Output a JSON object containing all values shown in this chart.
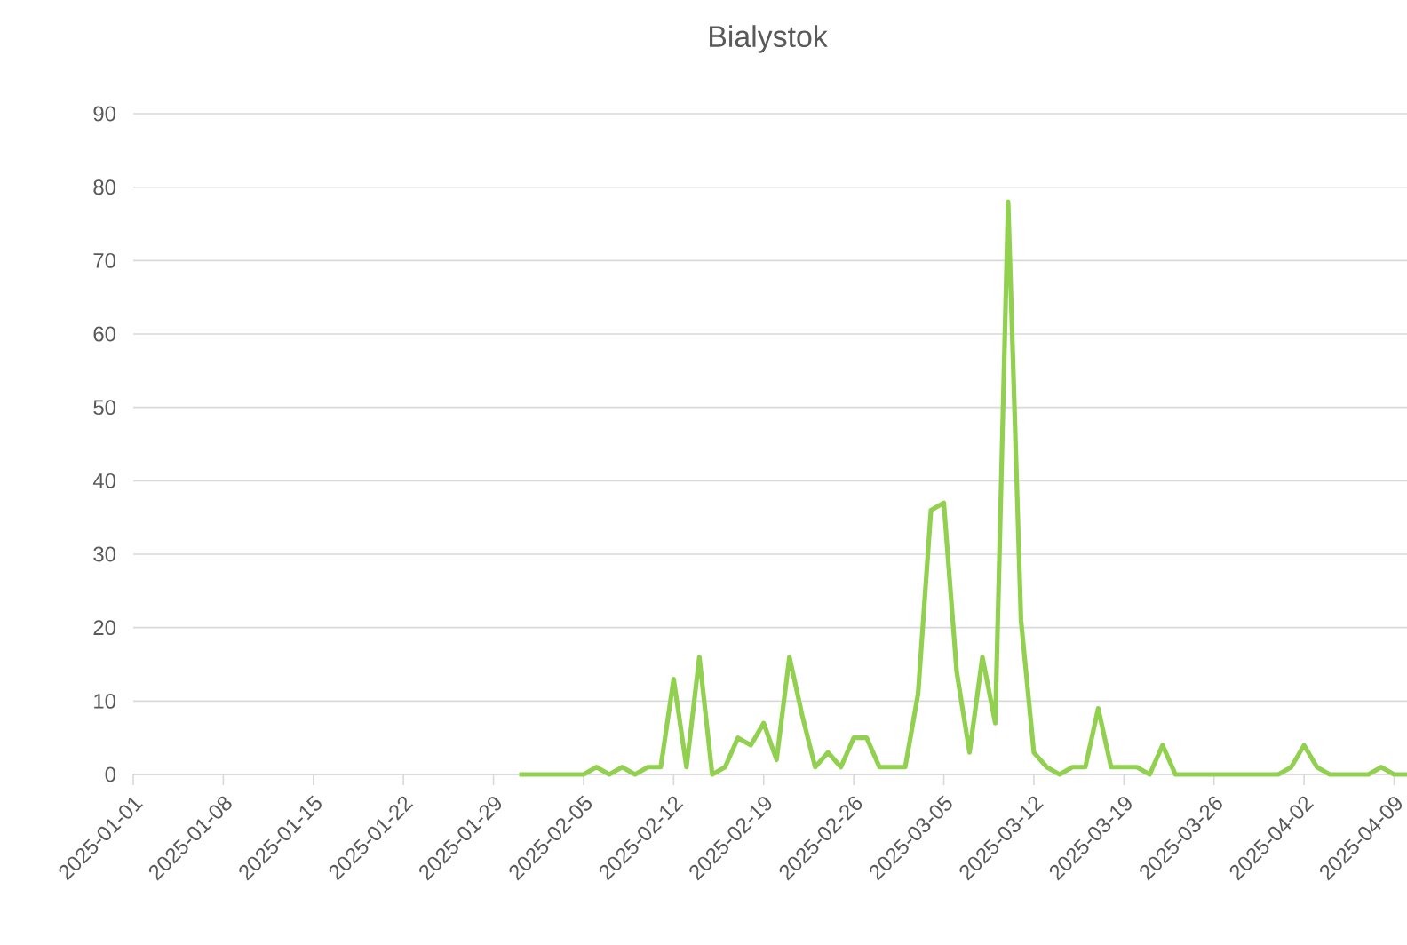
{
  "chart_data": {
    "type": "line",
    "title": "Bialystok",
    "x": [
      "2025-01-31",
      "2025-02-01",
      "2025-02-02",
      "2025-02-03",
      "2025-02-04",
      "2025-02-05",
      "2025-02-06",
      "2025-02-07",
      "2025-02-08",
      "2025-02-09",
      "2025-02-10",
      "2025-02-11",
      "2025-02-12",
      "2025-02-13",
      "2025-02-14",
      "2025-02-15",
      "2025-02-16",
      "2025-02-17",
      "2025-02-18",
      "2025-02-19",
      "2025-02-20",
      "2025-02-21",
      "2025-02-22",
      "2025-02-23",
      "2025-02-24",
      "2025-02-25",
      "2025-02-26",
      "2025-02-27",
      "2025-02-28",
      "2025-03-01",
      "2025-03-02",
      "2025-03-03",
      "2025-03-04",
      "2025-03-05",
      "2025-03-06",
      "2025-03-07",
      "2025-03-08",
      "2025-03-09",
      "2025-03-10",
      "2025-03-11",
      "2025-03-12",
      "2025-03-13",
      "2025-03-14",
      "2025-03-15",
      "2025-03-16",
      "2025-03-17",
      "2025-03-18",
      "2025-03-19",
      "2025-03-20",
      "2025-03-21",
      "2025-03-22",
      "2025-03-23",
      "2025-03-24",
      "2025-03-25",
      "2025-03-26",
      "2025-03-27",
      "2025-03-28",
      "2025-03-29",
      "2025-03-30",
      "2025-03-31",
      "2025-04-01",
      "2025-04-02",
      "2025-04-03",
      "2025-04-04",
      "2025-04-05",
      "2025-04-06",
      "2025-04-07",
      "2025-04-08",
      "2025-04-09",
      "2025-04-10"
    ],
    "series": [
      {
        "color": "#92d050",
        "values": [
          0,
          0,
          0,
          0,
          0,
          0,
          1,
          0,
          1,
          0,
          1,
          1,
          13,
          1,
          16,
          0,
          1,
          5,
          4,
          7,
          2,
          16,
          8,
          1,
          3,
          1,
          5,
          5,
          1,
          1,
          1,
          11,
          36,
          37,
          14,
          3,
          16,
          7,
          78,
          21,
          3,
          1,
          0,
          1,
          1,
          9,
          1,
          1,
          1,
          0,
          4,
          0,
          0,
          0,
          0,
          0,
          0,
          0,
          0,
          0,
          1,
          4,
          1,
          0,
          0,
          0,
          0,
          1,
          0,
          0
        ]
      }
    ],
    "xlim": [
      "2025-01-01",
      "2025-04-10"
    ],
    "xticks": [
      "2025-01-01",
      "2025-01-08",
      "2025-01-15",
      "2025-01-22",
      "2025-01-29",
      "2025-02-05",
      "2025-02-12",
      "2025-02-19",
      "2025-02-26",
      "2025-03-05",
      "2025-03-12",
      "2025-03-19",
      "2025-03-26",
      "2025-04-02",
      "2025-04-09"
    ],
    "ylim": [
      0,
      90
    ],
    "yticks": [
      0,
      10,
      20,
      30,
      40,
      50,
      60,
      70,
      80,
      90
    ],
    "grid": "y",
    "legend": false,
    "marker": "none",
    "line_style": "solid"
  }
}
